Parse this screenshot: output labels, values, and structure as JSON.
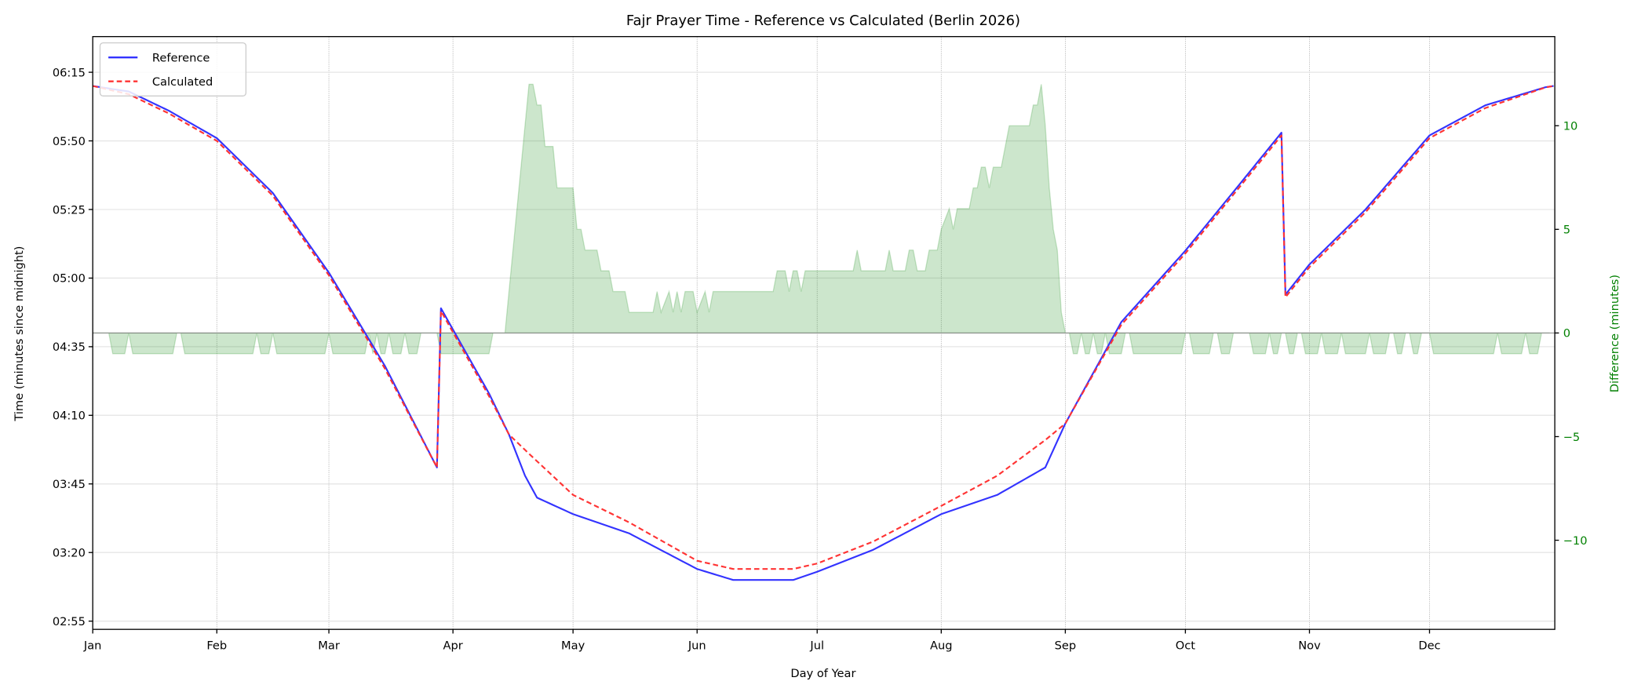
{
  "chart_data": {
    "type": "line",
    "title": "Fajr Prayer Time - Reference vs Calculated (Berlin 2026)",
    "xlabel": "Day of Year",
    "ylabel": "Time (minutes since midnight)",
    "y2label": "Difference (minutes)",
    "x_ticks": [
      "Jan",
      "Feb",
      "Mar",
      "Apr",
      "May",
      "Jun",
      "Jul",
      "Aug",
      "Sep",
      "Oct",
      "Nov",
      "Dec"
    ],
    "y_ticks": [
      "06:15",
      "05:50",
      "05:25",
      "05:00",
      "04:35",
      "04:10",
      "03:45",
      "03:20",
      "02:55"
    ],
    "y2_ticks": [
      "10",
      "5",
      "0",
      "−5",
      "−10"
    ],
    "ylim": [
      "02:52",
      "06:28"
    ],
    "y2lim": [
      -14.3,
      14.3
    ],
    "grid": true,
    "legend": {
      "placement": "top-left",
      "entries": [
        "Reference",
        "Calculated"
      ]
    },
    "colors": {
      "reference": "#3333ff",
      "calculated": "#ff3333",
      "difference": "#008000",
      "y2_axis": "#008000"
    },
    "series": [
      {
        "name": "Reference",
        "style": "solid",
        "points": [
          [
            "01-01",
            "06:10"
          ],
          [
            "01-10",
            "06:08"
          ],
          [
            "01-20",
            "06:01"
          ],
          [
            "02-01",
            "05:51"
          ],
          [
            "02-15",
            "05:31"
          ],
          [
            "03-01",
            "05:02"
          ],
          [
            "03-15",
            "04:28"
          ],
          [
            "03-28",
            "03:51"
          ],
          [
            "03-29",
            "04:49"
          ],
          [
            "04-10",
            "04:18"
          ],
          [
            "04-15",
            "04:03"
          ],
          [
            "04-19",
            "03:48"
          ],
          [
            "04-22",
            "03:40"
          ],
          [
            "05-01",
            "03:34"
          ],
          [
            "05-15",
            "03:27"
          ],
          [
            "06-01",
            "03:14"
          ],
          [
            "06-10",
            "03:10"
          ],
          [
            "06-25",
            "03:10"
          ],
          [
            "07-01",
            "03:13"
          ],
          [
            "07-15",
            "03:21"
          ],
          [
            "08-01",
            "03:34"
          ],
          [
            "08-15",
            "03:41"
          ],
          [
            "08-27",
            "03:51"
          ],
          [
            "09-01",
            "04:07"
          ],
          [
            "09-15",
            "04:44"
          ],
          [
            "10-01",
            "05:10"
          ],
          [
            "10-15",
            "05:35"
          ],
          [
            "10-25",
            "05:53"
          ],
          [
            "10-26",
            "04:54"
          ],
          [
            "11-01",
            "05:05"
          ],
          [
            "11-15",
            "05:25"
          ],
          [
            "12-01",
            "05:52"
          ],
          [
            "12-15",
            "06:03"
          ],
          [
            "12-31",
            "06:10"
          ]
        ]
      },
      {
        "name": "Calculated",
        "style": "dashed",
        "points": [
          [
            "01-01",
            "06:10"
          ],
          [
            "01-10",
            "06:07"
          ],
          [
            "01-20",
            "06:00"
          ],
          [
            "02-01",
            "05:50"
          ],
          [
            "02-15",
            "05:30"
          ],
          [
            "03-01",
            "05:01"
          ],
          [
            "03-15",
            "04:27"
          ],
          [
            "03-28",
            "03:51"
          ],
          [
            "03-29",
            "04:48"
          ],
          [
            "04-10",
            "04:17"
          ],
          [
            "04-15",
            "04:03"
          ],
          [
            "04-20",
            "03:56"
          ],
          [
            "05-01",
            "03:41"
          ],
          [
            "05-15",
            "03:31"
          ],
          [
            "06-01",
            "03:17"
          ],
          [
            "06-10",
            "03:14"
          ],
          [
            "06-25",
            "03:14"
          ],
          [
            "07-01",
            "03:16"
          ],
          [
            "07-15",
            "03:24"
          ],
          [
            "08-01",
            "03:37"
          ],
          [
            "08-15",
            "03:48"
          ],
          [
            "08-27",
            "04:01"
          ],
          [
            "09-01",
            "04:07"
          ],
          [
            "09-15",
            "04:43"
          ],
          [
            "10-01",
            "05:09"
          ],
          [
            "10-15",
            "05:34"
          ],
          [
            "10-25",
            "05:52"
          ],
          [
            "10-26",
            "04:53"
          ],
          [
            "11-01",
            "05:04"
          ],
          [
            "11-15",
            "05:24"
          ],
          [
            "12-01",
            "05:51"
          ],
          [
            "12-15",
            "06:02"
          ],
          [
            "12-31",
            "06:10"
          ]
        ]
      }
    ],
    "difference": {
      "axis": "right",
      "style": "filled-area",
      "positive_points": [
        [
          "04-14",
          0
        ],
        [
          "04-20",
          12
        ],
        [
          "04-21",
          12
        ],
        [
          "04-22",
          11
        ],
        [
          "04-23",
          11
        ],
        [
          "04-24",
          9
        ],
        [
          "04-26",
          9
        ],
        [
          "04-27",
          7
        ],
        [
          "05-01",
          7
        ],
        [
          "05-02",
          5
        ],
        [
          "05-03",
          5
        ],
        [
          "05-04",
          4
        ],
        [
          "05-07",
          4
        ],
        [
          "05-08",
          3
        ],
        [
          "05-10",
          3
        ],
        [
          "05-11",
          2
        ],
        [
          "05-14",
          2
        ],
        [
          "05-15",
          1
        ],
        [
          "05-21",
          1
        ],
        [
          "05-22",
          2
        ],
        [
          "05-23",
          1
        ],
        [
          "05-25",
          2
        ],
        [
          "05-26",
          1
        ],
        [
          "05-27",
          2
        ],
        [
          "05-28",
          1
        ],
        [
          "05-29",
          2
        ],
        [
          "05-31",
          2
        ],
        [
          "06-01",
          1
        ],
        [
          "06-03",
          2
        ],
        [
          "06-04",
          1
        ],
        [
          "06-05",
          2
        ],
        [
          "06-20",
          2
        ],
        [
          "06-21",
          3
        ],
        [
          "06-23",
          3
        ],
        [
          "06-24",
          2
        ],
        [
          "06-25",
          3
        ],
        [
          "06-26",
          3
        ],
        [
          "06-27",
          2
        ],
        [
          "06-28",
          3
        ],
        [
          "07-10",
          3
        ],
        [
          "07-11",
          4
        ],
        [
          "07-12",
          3
        ],
        [
          "07-18",
          3
        ],
        [
          "07-19",
          4
        ],
        [
          "07-20",
          3
        ],
        [
          "07-23",
          3
        ],
        [
          "07-24",
          4
        ],
        [
          "07-25",
          4
        ],
        [
          "07-26",
          3
        ],
        [
          "07-28",
          3
        ],
        [
          "07-29",
          4
        ],
        [
          "07-31",
          4
        ],
        [
          "08-01",
          5
        ],
        [
          "08-03",
          6
        ],
        [
          "08-04",
          5
        ],
        [
          "08-05",
          6
        ],
        [
          "08-08",
          6
        ],
        [
          "08-09",
          7
        ],
        [
          "08-10",
          7
        ],
        [
          "08-11",
          8
        ],
        [
          "08-12",
          8
        ],
        [
          "08-13",
          7
        ],
        [
          "08-14",
          8
        ],
        [
          "08-16",
          8
        ],
        [
          "08-17",
          9
        ],
        [
          "08-18",
          10
        ],
        [
          "08-23",
          10
        ],
        [
          "08-24",
          11
        ],
        [
          "08-25",
          11
        ],
        [
          "08-26",
          12
        ],
        [
          "08-27",
          10
        ],
        [
          "08-28",
          7
        ],
        [
          "08-29",
          5
        ],
        [
          "08-30",
          4
        ],
        [
          "08-31",
          1
        ],
        [
          "09-01",
          0
        ]
      ],
      "minus_one_ranges": [
        [
          "01-06",
          "01-09"
        ],
        [
          "01-11",
          "01-13"
        ],
        [
          "01-14",
          "01-15"
        ],
        [
          "01-16",
          "01-18"
        ],
        [
          "01-19",
          "01-21"
        ],
        [
          "01-24",
          "01-28"
        ],
        [
          "01-29",
          "02-01"
        ],
        [
          "02-02",
          "02-04"
        ],
        [
          "02-05",
          "02-06"
        ],
        [
          "02-07",
          "02-08"
        ],
        [
          "02-09",
          "02-10"
        ],
        [
          "02-12",
          "02-14"
        ],
        [
          "02-16",
          "02-28"
        ],
        [
          "03-02",
          "03-04"
        ],
        [
          "03-05",
          "03-08"
        ],
        [
          "03-09",
          "03-10"
        ],
        [
          "03-12",
          "03-12"
        ],
        [
          "03-14",
          "03-15"
        ],
        [
          "03-17",
          "03-19"
        ],
        [
          "03-21",
          "03-23"
        ],
        [
          "03-29",
          "04-10"
        ],
        [
          "09-03",
          "09-04"
        ],
        [
          "09-06",
          "09-07"
        ],
        [
          "09-09",
          "09-10"
        ],
        [
          "09-12",
          "09-15"
        ],
        [
          "09-18",
          "09-30"
        ],
        [
          "10-03",
          "10-07"
        ],
        [
          "10-10",
          "10-12"
        ],
        [
          "10-18",
          "10-21"
        ],
        [
          "10-23",
          "10-24"
        ],
        [
          "10-27",
          "10-28"
        ],
        [
          "10-31",
          "11-01"
        ],
        [
          "11-02",
          "11-03"
        ],
        [
          "11-05",
          "11-06"
        ],
        [
          "11-07",
          "11-08"
        ],
        [
          "11-10",
          "11-11"
        ],
        [
          "11-12",
          "11-13"
        ],
        [
          "11-14",
          "11-15"
        ],
        [
          "11-17",
          "11-18"
        ],
        [
          "11-19",
          "11-20"
        ],
        [
          "11-23",
          "11-24"
        ],
        [
          "11-27",
          "11-28"
        ],
        [
          "12-02",
          "12-14"
        ],
        [
          "12-15",
          "12-17"
        ],
        [
          "12-19",
          "12-20"
        ],
        [
          "12-21",
          "12-24"
        ],
        [
          "12-26",
          "12-28"
        ]
      ]
    }
  }
}
